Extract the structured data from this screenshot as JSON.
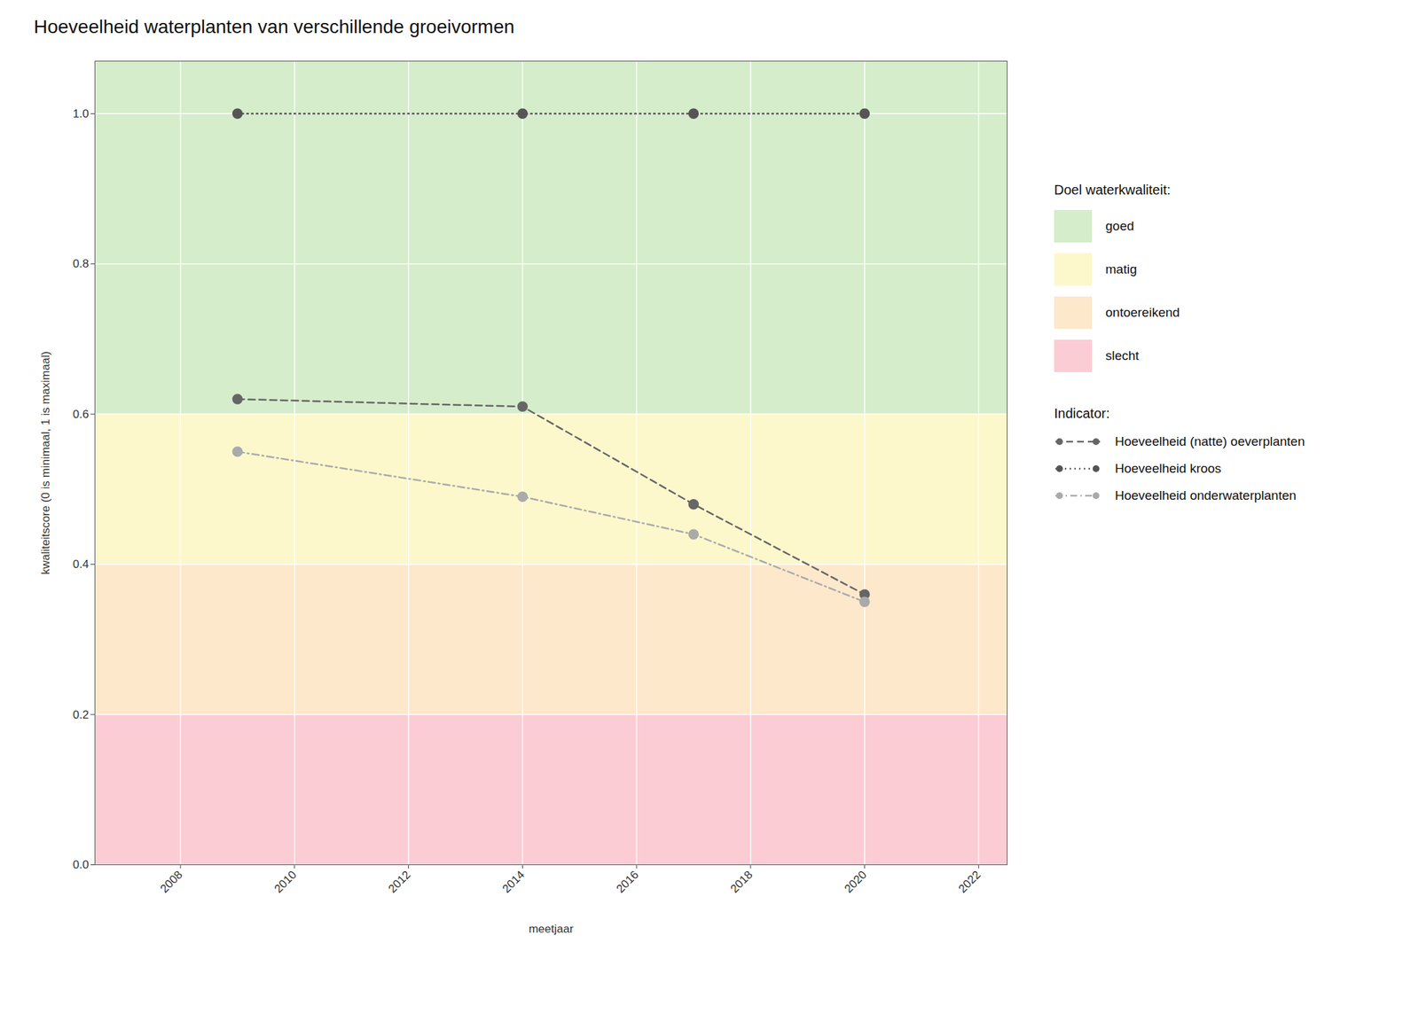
{
  "chart_data": {
    "type": "line",
    "title": "Hoeveelheid waterplanten van verschillende groeivormen",
    "x_label": "meetjaar",
    "y_label": "kwaliteitscore (0 is minimaal, 1 is maximaal)",
    "x": [
      2009,
      2014,
      2017,
      2020
    ],
    "series": [
      {
        "name": "Hoeveelheid kroos",
        "color": "#555555",
        "values": [
          1.0,
          1.0,
          1.0,
          1.0
        ],
        "line_style": "dotted",
        "marker": "circle"
      },
      {
        "name": "Hoeveelheid (natte) oeverplanten",
        "color": "#666666",
        "values": [
          0.62,
          0.61,
          0.48,
          0.36
        ],
        "line_style": "dashed",
        "marker": "circle"
      },
      {
        "name": "Hoeveelheid onderwaterplanten",
        "color": "#aaaaaa",
        "values": [
          0.55,
          0.49,
          0.44,
          0.35
        ],
        "line_style": "dashdot",
        "marker": "circle"
      }
    ],
    "xlim": [
      2006.5,
      2022.5
    ],
    "ylim": [
      0.0,
      1.07
    ],
    "xticks": [
      2008,
      2010,
      2012,
      2014,
      2016,
      2018,
      2020,
      2022
    ],
    "yticks": [
      {
        "value": 0.0,
        "label": "0.0"
      },
      {
        "value": 0.2,
        "label": "0.2"
      },
      {
        "value": 0.4,
        "label": "0.4"
      },
      {
        "value": 0.6,
        "label": "0.6"
      },
      {
        "value": 0.8,
        "label": "0.8"
      },
      {
        "value": 1.0,
        "label": "1.0"
      }
    ],
    "grid": true,
    "legend": "right",
    "zones": [
      {
        "label": "goed",
        "ymin": 0.6,
        "ymax": 1.07,
        "color": "#d5edcb"
      },
      {
        "label": "matig",
        "ymin": 0.4,
        "ymax": 0.6,
        "color": "#fdf7cc"
      },
      {
        "label": "ontoereikend",
        "ymin": 0.2,
        "ymax": 0.4,
        "color": "#fde8cc"
      },
      {
        "label": "slecht",
        "ymin": 0.0,
        "ymax": 0.2,
        "color": "#fcccd4"
      }
    ],
    "zones_title": "Doel waterkwaliteit:",
    "series_title": "Indicator:",
    "legend_order": [
      1,
      0,
      2
    ]
  }
}
